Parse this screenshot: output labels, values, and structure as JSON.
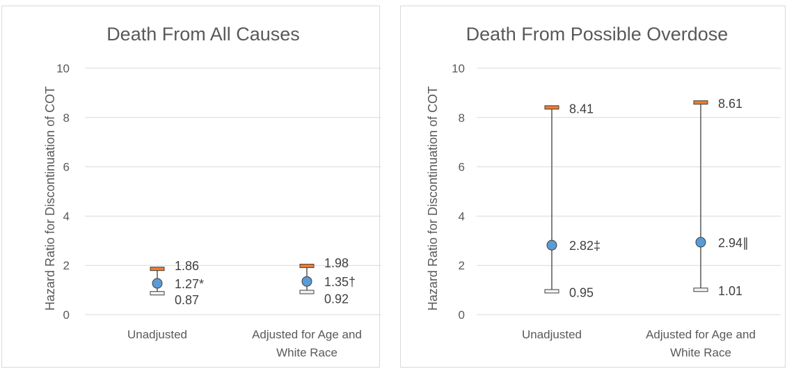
{
  "chart_data": [
    {
      "type": "scatter",
      "title": "Death From All Causes",
      "ylabel": "Hazard Ratio for Discontinuation of COT",
      "xlabel": "",
      "ylim": [
        0,
        10
      ],
      "yticks": [
        0,
        2,
        4,
        6,
        8,
        10
      ],
      "grid": true,
      "categories": [
        "Unadjusted",
        "Adjusted for Age and White Race"
      ],
      "points": [
        {
          "estimate": 1.27,
          "lower": 0.87,
          "upper": 1.86,
          "estimate_label": "1.27*",
          "lower_label": "0.87",
          "upper_label": "1.86"
        },
        {
          "estimate": 1.35,
          "lower": 0.92,
          "upper": 1.98,
          "estimate_label": "1.35†",
          "lower_label": "0.92",
          "upper_label": "1.98"
        }
      ]
    },
    {
      "type": "scatter",
      "title": "Death From Possible Overdose",
      "ylabel": "Hazard Ratio for Discontinuation of COT",
      "xlabel": "",
      "ylim": [
        0,
        10
      ],
      "yticks": [
        0,
        2,
        4,
        6,
        8,
        10
      ],
      "grid": true,
      "categories": [
        "Unadjusted",
        "Adjusted for Age and White Race"
      ],
      "points": [
        {
          "estimate": 2.82,
          "lower": 0.95,
          "upper": 8.41,
          "estimate_label": "2.82‡",
          "lower_label": "0.95",
          "upper_label": "8.41"
        },
        {
          "estimate": 2.94,
          "lower": 1.01,
          "upper": 8.61,
          "estimate_label": "2.94∥",
          "lower_label": "1.01",
          "upper_label": "8.61"
        }
      ]
    }
  ],
  "colors": {
    "estimate_marker": "#5b9bd5",
    "upper_marker": "#ed7d31",
    "lower_marker": "#f2f2f2",
    "whisker": "#595959",
    "gridline": "#d9d9d9",
    "text": "#595959"
  }
}
